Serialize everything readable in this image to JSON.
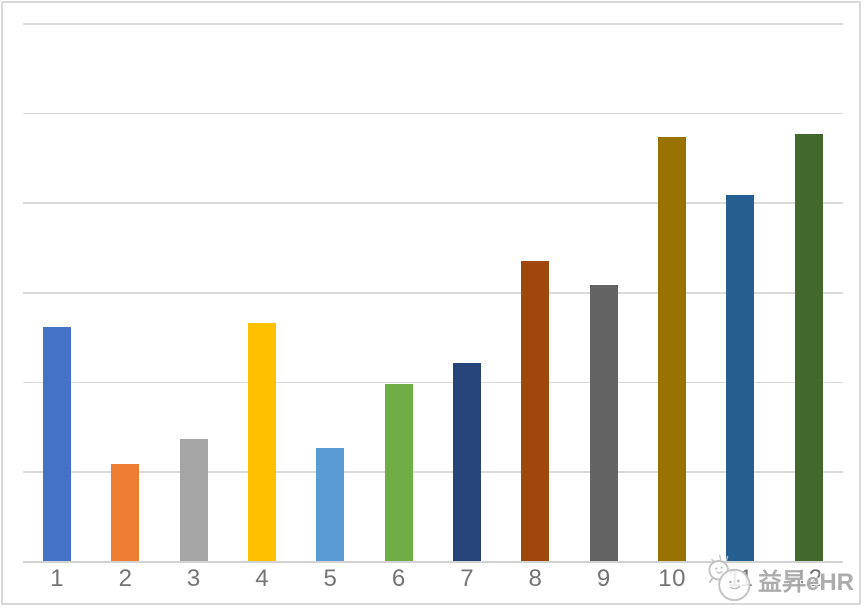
{
  "chart_data": {
    "type": "bar",
    "title": "",
    "xlabel": "",
    "ylabel": "",
    "categories": [
      "1",
      "2",
      "3",
      "4",
      "5",
      "6",
      "7",
      "8",
      "9",
      "10",
      "11",
      "12"
    ],
    "values": [
      2.61,
      1.08,
      1.36,
      2.66,
      1.26,
      1.97,
      2.21,
      3.35,
      3.08,
      4.73,
      4.08,
      4.76
    ],
    "bar_colors": [
      "#4472C4",
      "#ED7D31",
      "#A5A5A5",
      "#FFC000",
      "#5B9BD5",
      "#70AD47",
      "#264478",
      "#9E480E",
      "#636363",
      "#997300",
      "#255E91",
      "#43682B"
    ],
    "ylim": [
      0,
      6
    ],
    "gridline_interval": 1,
    "grid": true,
    "legend_position": "none",
    "y_axis_labels_visible": false,
    "x_axis_labels_visible": true
  },
  "watermark": {
    "text": "益昇eHR",
    "logo": "wechat-mascot-logo"
  },
  "colors": {
    "background": "#FFFFFF",
    "frame_border": "#D9D9D9",
    "gridline": "#DADADA",
    "axis_line": "#D2D2D2",
    "tick_label": "#747474",
    "watermark_gray": "#A6A6A6"
  }
}
